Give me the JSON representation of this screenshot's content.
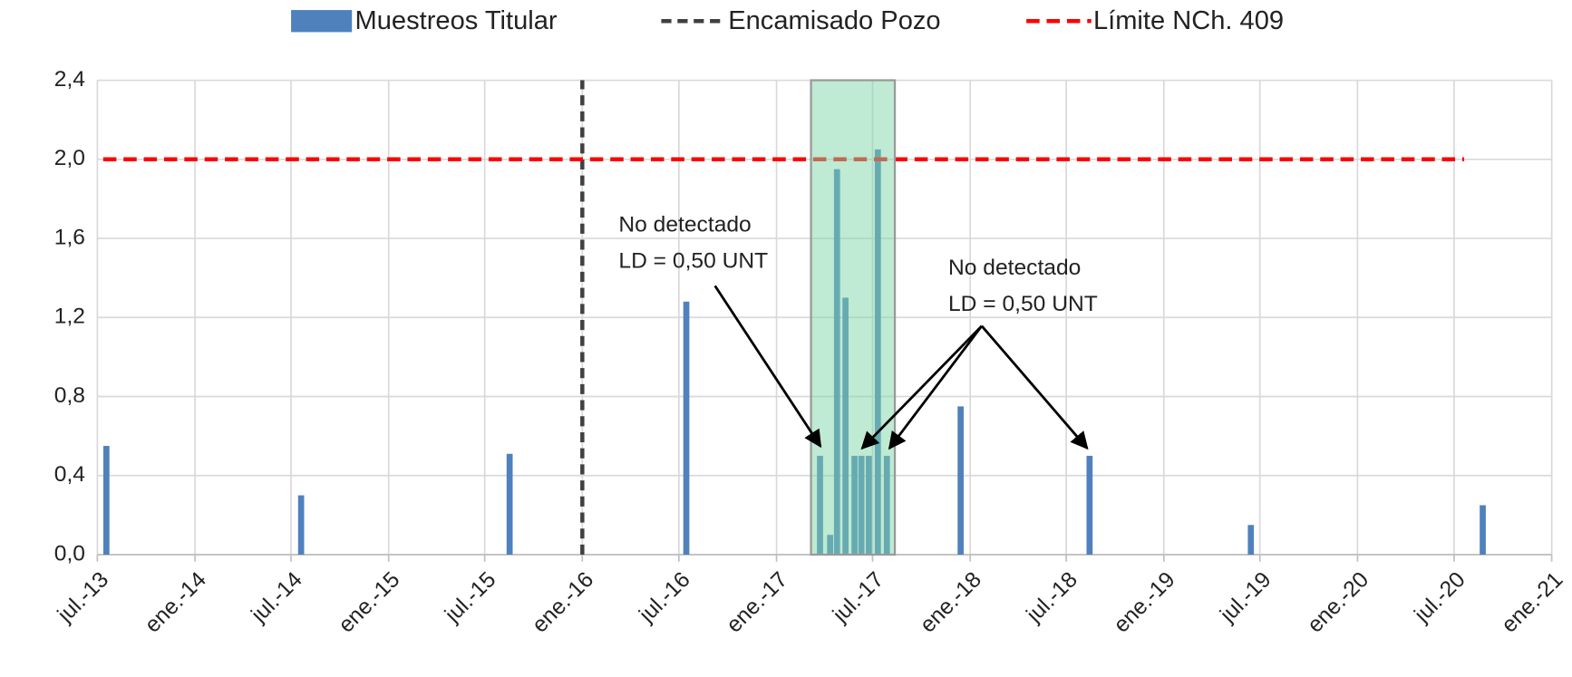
{
  "chart_data": {
    "type": "bar",
    "series": [
      {
        "name": "Muestreos Titular",
        "type": "bar",
        "color": "#4f81bd",
        "x": [
          "2013-07-18",
          "2014-07-20",
          "2015-08-17",
          "2016-07-15",
          "2017-03-24",
          "2017-04-12",
          "2017-04-25",
          "2017-05-11",
          "2017-05-28",
          "2017-06-10",
          "2017-06-24",
          "2017-07-11",
          "2017-07-28",
          "2017-12-14",
          "2018-08-14",
          "2019-06-14",
          "2020-08-24"
        ],
        "values": [
          0.55,
          0.3,
          0.51,
          1.28,
          0.5,
          0.1,
          1.95,
          1.3,
          0.5,
          0.5,
          0.5,
          2.05,
          0.5,
          0.75,
          0.5,
          0.15,
          0.25
        ]
      },
      {
        "name": "Encamisado Pozo",
        "type": "line",
        "color": "#404040",
        "x": [
          "2016-01-01",
          "2016-01-01"
        ],
        "values": [
          0,
          2.4
        ]
      },
      {
        "name": "Límite NCh. 409",
        "type": "line",
        "color": "#ff0000",
        "x": [
          "2013-07-12",
          "2020-07-20"
        ],
        "values": [
          2.0,
          2.0
        ]
      }
    ],
    "highlight": {
      "x": [
        "2017-03-07",
        "2017-08-12"
      ],
      "color": "#7fd6a8"
    },
    "annotations": [
      {
        "lines": [
          "No detectado",
          "LD = 0,50 UNT"
        ]
      },
      {
        "lines": [
          "No detectado",
          "LD = 0,50 UNT"
        ]
      }
    ],
    "xlim": [
      "2013-07-01",
      "2021-01-01"
    ],
    "xticks": [
      {
        "value": "2013-07-01",
        "label": "jul.-13"
      },
      {
        "value": "2014-01-01",
        "label": "ene.-14"
      },
      {
        "value": "2014-07-01",
        "label": "jul.-14"
      },
      {
        "value": "2015-01-01",
        "label": "ene.-15"
      },
      {
        "value": "2015-07-01",
        "label": "jul.-15"
      },
      {
        "value": "2016-01-01",
        "label": "ene.-16"
      },
      {
        "value": "2016-07-01",
        "label": "jul.-16"
      },
      {
        "value": "2017-01-01",
        "label": "ene.-17"
      },
      {
        "value": "2017-07-01",
        "label": "jul.-17"
      },
      {
        "value": "2018-01-01",
        "label": "ene.-18"
      },
      {
        "value": "2018-07-01",
        "label": "jul.-18"
      },
      {
        "value": "2019-01-01",
        "label": "ene.-19"
      },
      {
        "value": "2019-07-01",
        "label": "jul.-19"
      },
      {
        "value": "2020-01-01",
        "label": "ene.-20"
      },
      {
        "value": "2020-07-01",
        "label": "jul.-20"
      },
      {
        "value": "2021-01-01",
        "label": "ene.-21"
      }
    ],
    "ylim": [
      0,
      2.4
    ],
    "yticks": [
      {
        "value": 0,
        "label": "0,0"
      },
      {
        "value": 0.4,
        "label": "0,4"
      },
      {
        "value": 0.8,
        "label": "0,8"
      },
      {
        "value": 1.2,
        "label": "1,2"
      },
      {
        "value": 1.6,
        "label": "1,6"
      },
      {
        "value": 2.0,
        "label": "2,0"
      },
      {
        "value": 2.4,
        "label": "2,4"
      }
    ],
    "grid": true,
    "legend": "top"
  }
}
